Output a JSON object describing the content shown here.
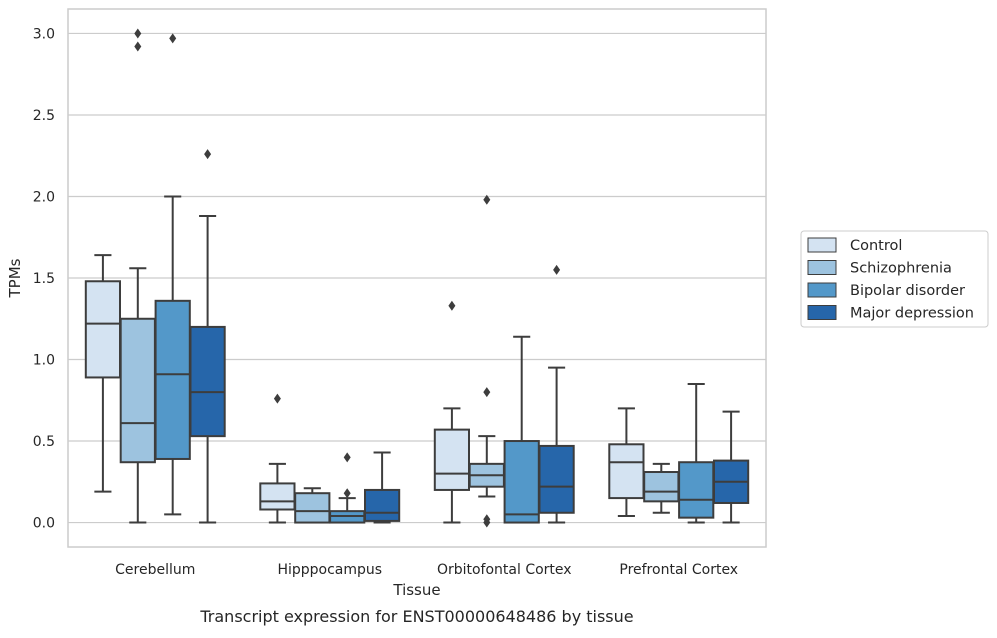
{
  "caption": "Transcript expression for ENST00000648486 by tissue",
  "chart_data": {
    "type": "boxplot",
    "title": "",
    "xlabel": "Tissue",
    "ylabel": "TPMs",
    "ylim": [
      -0.15,
      3.15
    ],
    "yticks": [
      0.0,
      0.5,
      1.0,
      1.5,
      2.0,
      2.5,
      3.0
    ],
    "ytick_labels": [
      "0.0",
      "0.5",
      "1.0",
      "1.5",
      "2.0",
      "2.5",
      "3.0"
    ],
    "grid": "horizontal",
    "legend_position": "right",
    "categories": [
      "Cerebellum",
      "Hipppocampus",
      "Orbitofontal Cortex",
      "Prefrontal Cortex"
    ],
    "series": [
      {
        "name": "Control",
        "color": "#d4e3f2",
        "boxes": [
          {
            "whislo": 0.19,
            "q1": 0.89,
            "med": 1.22,
            "q3": 1.48,
            "whishi": 1.64,
            "fliers": []
          },
          {
            "whislo": 0.0,
            "q1": 0.08,
            "med": 0.13,
            "q3": 0.24,
            "whishi": 0.36,
            "fliers": [
              0.76
            ]
          },
          {
            "whislo": 0.0,
            "q1": 0.2,
            "med": 0.3,
            "q3": 0.57,
            "whishi": 0.7,
            "fliers": [
              1.33
            ]
          },
          {
            "whislo": 0.04,
            "q1": 0.15,
            "med": 0.37,
            "q3": 0.48,
            "whishi": 0.7,
            "fliers": []
          }
        ]
      },
      {
        "name": "Schizophrenia",
        "color": "#9dc3df",
        "boxes": [
          {
            "whislo": 0.0,
            "q1": 0.37,
            "med": 0.61,
            "q3": 1.25,
            "whishi": 1.56,
            "fliers": [
              2.92,
              3.0
            ]
          },
          {
            "whislo": 0.0,
            "q1": 0.0,
            "med": 0.07,
            "q3": 0.18,
            "whishi": 0.21,
            "fliers": []
          },
          {
            "whislo": 0.16,
            "q1": 0.22,
            "med": 0.29,
            "q3": 0.36,
            "whishi": 0.53,
            "fliers": [
              0.8,
              1.98,
              0.0,
              0.02
            ]
          },
          {
            "whislo": 0.06,
            "q1": 0.13,
            "med": 0.19,
            "q3": 0.31,
            "whishi": 0.36,
            "fliers": []
          }
        ]
      },
      {
        "name": "Bipolar disorder",
        "color": "#5398c9",
        "boxes": [
          {
            "whislo": 0.05,
            "q1": 0.39,
            "med": 0.91,
            "q3": 1.36,
            "whishi": 2.0,
            "fliers": [
              2.97
            ]
          },
          {
            "whislo": 0.0,
            "q1": 0.0,
            "med": 0.04,
            "q3": 0.07,
            "whishi": 0.15,
            "fliers": [
              0.18,
              0.4
            ]
          },
          {
            "whislo": 0.0,
            "q1": 0.0,
            "med": 0.05,
            "q3": 0.5,
            "whishi": 1.14,
            "fliers": []
          },
          {
            "whislo": 0.0,
            "q1": 0.03,
            "med": 0.14,
            "q3": 0.37,
            "whishi": 0.85,
            "fliers": []
          }
        ]
      },
      {
        "name": "Major depression",
        "color": "#2666aa",
        "boxes": [
          {
            "whislo": 0.0,
            "q1": 0.53,
            "med": 0.8,
            "q3": 1.2,
            "whishi": 1.88,
            "fliers": [
              2.26
            ]
          },
          {
            "whislo": 0.0,
            "q1": 0.01,
            "med": 0.06,
            "q3": 0.2,
            "whishi": 0.43,
            "fliers": []
          },
          {
            "whislo": 0.0,
            "q1": 0.06,
            "med": 0.22,
            "q3": 0.47,
            "whishi": 0.95,
            "fliers": [
              1.55
            ]
          },
          {
            "whislo": 0.0,
            "q1": 0.12,
            "med": 0.25,
            "q3": 0.38,
            "whishi": 0.68,
            "fliers": []
          }
        ]
      }
    ]
  }
}
